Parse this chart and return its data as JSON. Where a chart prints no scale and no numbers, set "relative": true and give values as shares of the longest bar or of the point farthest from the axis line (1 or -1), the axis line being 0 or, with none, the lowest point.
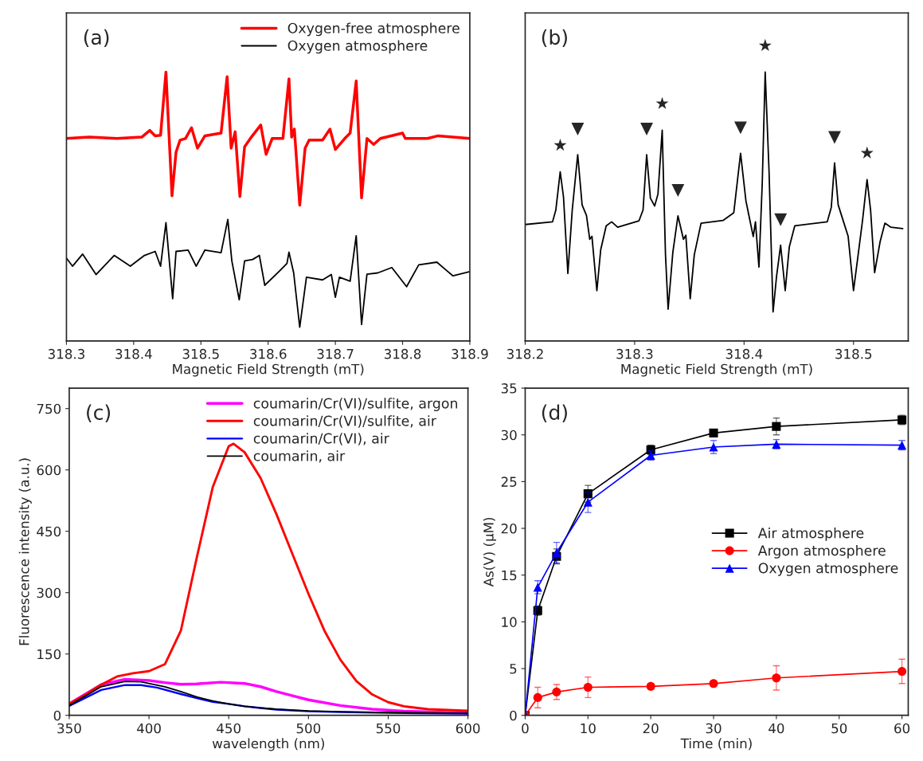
{
  "chart_data": [
    {
      "type": "line",
      "relative": true,
      "xlabel": "Magnetic Field Strength (mT)",
      "xlim": [
        318.3,
        318.9
      ],
      "xticks": [
        318.3,
        318.4,
        318.5,
        318.6,
        318.7,
        318.8,
        318.9
      ],
      "tick_labels": "x",
      "legend": "top right",
      "annotations": [
        "(a)"
      ],
      "series": [
        {
          "name": "Oxygen-free atmosphere",
          "color": "#ff0000",
          "x": [
            318.3,
            318.334,
            318.375,
            318.412,
            318.424,
            318.432,
            318.44,
            318.448,
            318.457,
            318.463,
            318.469,
            318.477,
            318.486,
            318.495,
            318.506,
            318.53,
            318.539,
            318.545,
            318.551,
            318.558,
            318.565,
            318.575,
            318.589,
            318.597,
            318.606,
            318.622,
            318.631,
            318.635,
            318.639,
            318.647,
            318.655,
            318.661,
            318.681,
            318.692,
            318.7,
            318.714,
            318.722,
            318.731,
            318.739,
            318.747,
            318.757,
            318.767,
            318.8,
            318.804,
            318.837,
            318.853,
            318.9
          ],
          "values": [
            0.753,
            0.758,
            0.753,
            0.758,
            0.783,
            0.763,
            0.765,
            1.0,
            0.54,
            0.702,
            0.747,
            0.753,
            0.793,
            0.717,
            0.763,
            0.773,
            0.983,
            0.717,
            0.778,
            0.537,
            0.722,
            0.758,
            0.803,
            0.694,
            0.753,
            0.753,
            0.975,
            0.758,
            0.788,
            0.505,
            0.717,
            0.747,
            0.747,
            0.788,
            0.712,
            0.753,
            0.773,
            0.967,
            0.532,
            0.753,
            0.731,
            0.753,
            0.773,
            0.753,
            0.753,
            0.763,
            0.753
          ]
        },
        {
          "name": "Oxygen atmosphere",
          "color": "#000000",
          "x": [
            318.3,
            318.309,
            318.324,
            318.344,
            318.371,
            318.395,
            318.416,
            318.432,
            318.44,
            318.448,
            318.458,
            318.463,
            318.481,
            318.493,
            318.506,
            318.53,
            318.54,
            318.546,
            318.557,
            318.565,
            318.577,
            318.587,
            318.595,
            318.616,
            318.628,
            318.631,
            318.638,
            318.647,
            318.657,
            318.681,
            318.694,
            318.7,
            318.706,
            318.722,
            318.731,
            318.739,
            318.747,
            318.763,
            318.784,
            318.806,
            318.824,
            318.851,
            318.865,
            318.875,
            318.9
          ],
          "values": [
            0.308,
            0.278,
            0.323,
            0.247,
            0.318,
            0.278,
            0.318,
            0.333,
            0.278,
            0.44,
            0.157,
            0.333,
            0.338,
            0.278,
            0.338,
            0.328,
            0.452,
            0.298,
            0.153,
            0.298,
            0.303,
            0.318,
            0.207,
            0.258,
            0.288,
            0.33,
            0.253,
            0.051,
            0.237,
            0.227,
            0.247,
            0.162,
            0.237,
            0.222,
            0.391,
            0.061,
            0.248,
            0.253,
            0.273,
            0.202,
            0.283,
            0.293,
            0.263,
            0.242,
            0.258
          ]
        }
      ]
    },
    {
      "type": "line",
      "relative": true,
      "xlabel": "Magnetic Field Strength (mT)",
      "xlim": [
        318.2,
        318.55
      ],
      "xticks": [
        318.2,
        318.3,
        318.4,
        318.5
      ],
      "tick_labels": "x",
      "annotations": [
        "(b)",
        {
          "text": "★",
          "x": 318.232,
          "y": 0.629
        },
        {
          "text": "▼",
          "x": 318.248,
          "y": 0.693
        },
        {
          "text": "▼",
          "x": 318.311,
          "y": 0.693
        },
        {
          "text": "★",
          "x": 318.3252,
          "y": 0.784
        },
        {
          "text": "▼",
          "x": 318.3396,
          "y": 0.465
        },
        {
          "text": "▼",
          "x": 318.3968,
          "y": 0.698
        },
        {
          "text": "★",
          "x": 318.4193,
          "y": 1.0
        },
        {
          "text": "▼",
          "x": 318.4334,
          "y": 0.356
        },
        {
          "text": "▼",
          "x": 318.4827,
          "y": 0.662
        },
        {
          "text": "★",
          "x": 318.5124,
          "y": 0.6
        }
      ],
      "series": [
        {
          "color": "#000000",
          "x": [
            318.2,
            318.225,
            318.228,
            318.232,
            318.235,
            318.239,
            318.243,
            318.248,
            318.252,
            318.256,
            318.259,
            318.261,
            318.2655,
            318.269,
            318.274,
            318.279,
            318.2845,
            318.304,
            318.3077,
            318.311,
            318.3144,
            318.3183,
            318.3213,
            318.3252,
            318.3282,
            318.3306,
            318.3349,
            318.3396,
            318.3446,
            318.3468,
            318.3508,
            318.3545,
            318.3607,
            318.3807,
            318.3906,
            318.3968,
            318.4017,
            318.4054,
            318.4084,
            318.4104,
            318.4136,
            318.4166,
            318.4193,
            318.4228,
            318.4265,
            318.4297,
            318.4334,
            318.4376,
            318.4413,
            318.4463,
            318.476,
            318.4797,
            318.4827,
            318.486,
            318.4909,
            318.4951,
            318.5,
            318.5045,
            318.5082,
            318.5124,
            318.5156,
            318.5193,
            318.5243,
            318.5287,
            318.5342,
            318.545
          ],
          "values": [
            0.433,
            0.443,
            0.487,
            0.629,
            0.536,
            0.251,
            0.487,
            0.693,
            0.506,
            0.467,
            0.378,
            0.389,
            0.187,
            0.339,
            0.428,
            0.443,
            0.423,
            0.447,
            0.487,
            0.693,
            0.531,
            0.502,
            0.546,
            0.784,
            0.32,
            0.118,
            0.329,
            0.465,
            0.378,
            0.393,
            0.157,
            0.32,
            0.438,
            0.448,
            0.477,
            0.698,
            0.521,
            0.447,
            0.388,
            0.443,
            0.275,
            0.585,
            1.0,
            0.634,
            0.108,
            0.241,
            0.356,
            0.187,
            0.349,
            0.428,
            0.443,
            0.497,
            0.662,
            0.506,
            0.443,
            0.389,
            0.187,
            0.329,
            0.447,
            0.6,
            0.487,
            0.254,
            0.369,
            0.438,
            0.423,
            0.418
          ]
        }
      ]
    },
    {
      "type": "line",
      "xlabel": "wavelength (nm)",
      "ylabel": "Fluorescence intensity (a.u.)",
      "xlim": [
        350,
        600
      ],
      "ylim": [
        0,
        800
      ],
      "xticks": [
        350,
        400,
        450,
        500,
        550,
        600
      ],
      "yticks": [
        0,
        150,
        300,
        450,
        600,
        750
      ],
      "legend": "top right",
      "annotations": [
        "(c)"
      ],
      "series": [
        {
          "name": "coumarin/Cr(VI)/sulfite, argon",
          "color": "#ff00ff",
          "x": [
            350,
            370,
            385,
            400,
            410,
            420,
            430,
            445,
            460,
            470,
            480,
            490,
            500,
            520,
            540,
            560,
            600
          ],
          "values": [
            28,
            75,
            88,
            85,
            80,
            76,
            77,
            81,
            78,
            70,
            58,
            48,
            38,
            24,
            15,
            10,
            6
          ]
        },
        {
          "name": "coumarin/Cr(VI)/sulfite, air",
          "color": "#ff0000",
          "x": [
            350,
            360,
            370,
            380,
            390,
            400,
            410,
            420,
            430,
            440,
            450,
            453,
            460,
            470,
            480,
            490,
            500,
            510,
            520,
            530,
            540,
            550,
            560,
            575,
            600
          ],
          "values": [
            28,
            50,
            75,
            95,
            103,
            108,
            125,
            207,
            386,
            558,
            658,
            664,
            643,
            580,
            491,
            394,
            297,
            207,
            136,
            84,
            51,
            32,
            22,
            15,
            11
          ]
        },
        {
          "name": "coumarin/Cr(VI), air",
          "color": "#0000ff",
          "x": [
            350,
            370,
            385,
            395,
            405,
            420,
            430,
            440,
            450,
            460,
            470,
            480,
            500,
            520,
            550,
            600
          ],
          "values": [
            23,
            62,
            74,
            74,
            68,
            52,
            42,
            33,
            28,
            22,
            18,
            14,
            10,
            8,
            6,
            4
          ]
        },
        {
          "name": "coumarin, air",
          "color": "#000000",
          "x": [
            350,
            370,
            385,
            395,
            410,
            420,
            430,
            440,
            450,
            460,
            470,
            480,
            500,
            520,
            550,
            600
          ],
          "values": [
            24,
            70,
            83,
            82,
            70,
            58,
            45,
            35,
            28,
            22,
            18,
            15,
            11,
            9,
            7,
            5
          ]
        }
      ]
    },
    {
      "type": "line",
      "xlabel": "Time (min)",
      "ylabel": "As(V) (μM)",
      "xlim": [
        0,
        61
      ],
      "ylim": [
        0,
        35
      ],
      "xticks": [
        0,
        10,
        20,
        30,
        40,
        50,
        60
      ],
      "yticks": [
        0,
        5,
        10,
        15,
        20,
        25,
        30,
        35
      ],
      "legend": "right",
      "annotations": [
        "(d)"
      ],
      "x": [
        0,
        2,
        5,
        10,
        20,
        30,
        40,
        60
      ],
      "series": [
        {
          "name": "Air atmosphere",
          "color": "#000000",
          "marker": "square",
          "values": [
            0,
            11.2,
            17.0,
            23.7,
            28.4,
            30.2,
            30.9,
            31.6
          ],
          "errors": [
            null,
            0.5,
            0.8,
            0.9,
            0.5,
            0.4,
            0.9,
            0.5
          ]
        },
        {
          "name": "Argon atmosphere",
          "color": "#ff0000",
          "marker": "circle",
          "values": [
            0,
            1.9,
            2.5,
            3.0,
            3.1,
            3.4,
            4.0,
            4.7
          ],
          "errors": [
            null,
            1.1,
            0.8,
            1.1,
            0.3,
            0.3,
            1.3,
            1.3
          ]
        },
        {
          "name": "Oxygen atmosphere",
          "color": "#0000ff",
          "marker": "triangle",
          "values": [
            0,
            13.7,
            17.4,
            22.8,
            27.8,
            28.7,
            29.0,
            28.9
          ],
          "errors": [
            null,
            0.7,
            1.1,
            1.1,
            0.5,
            0.7,
            0.5,
            0.5
          ]
        }
      ]
    }
  ]
}
